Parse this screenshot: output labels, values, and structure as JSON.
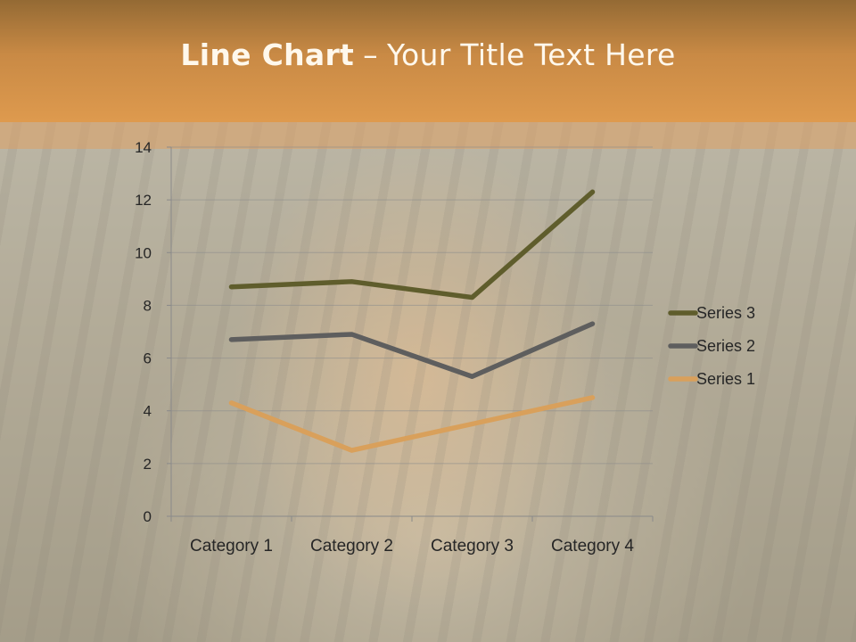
{
  "header": {
    "title_bold": "Line Chart",
    "title_separator": "–",
    "title_rest": "Your Title Text Here"
  },
  "chart_data": {
    "type": "line",
    "categories": [
      "Category 1",
      "Category 2",
      "Category 3",
      "Category 4"
    ],
    "series": [
      {
        "name": "Series 1",
        "values": [
          4.3,
          2.5,
          3.5,
          4.5
        ],
        "color": "#d9a05b"
      },
      {
        "name": "Series 2",
        "values": [
          6.7,
          6.9,
          5.3,
          7.3
        ],
        "color": "#5e5e5e"
      },
      {
        "name": "Series 3",
        "values": [
          8.7,
          8.9,
          8.3,
          12.3
        ],
        "color": "#5f5d2c"
      }
    ],
    "ylim": [
      0,
      14
    ],
    "yticks": [
      0,
      2,
      4,
      6,
      8,
      10,
      12,
      14
    ],
    "grid": true,
    "legend_position": "right",
    "legend_order": [
      "Series 3",
      "Series 2",
      "Series 1"
    ]
  }
}
